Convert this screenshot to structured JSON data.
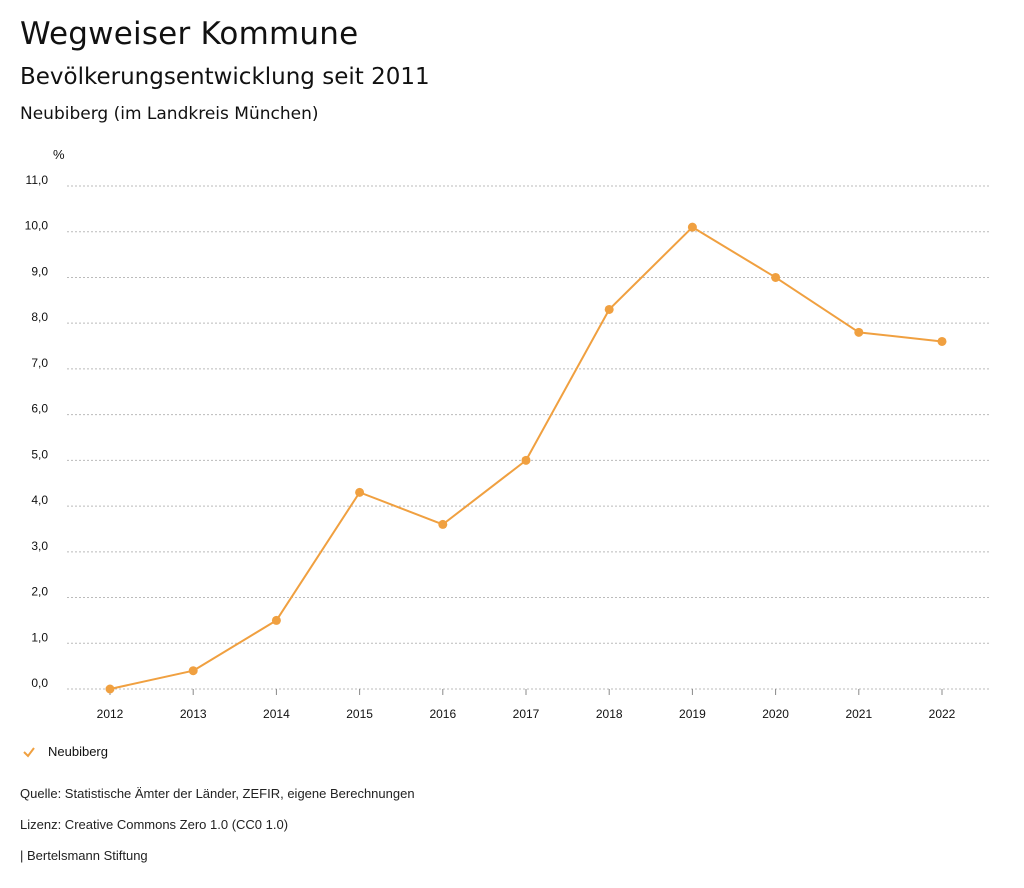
{
  "header": {
    "title": "Wegweiser Kommune",
    "subtitle": "Bevölkerungsentwicklung seit 2011",
    "region": "Neubiberg (im Landkreis München)"
  },
  "footer": {
    "source": "Quelle: Statistische Ämter der Länder, ZEFIR, eigene Berechnungen",
    "license": "Lizenz: Creative Commons Zero 1.0 (CC0 1.0)",
    "publisher": "| Bertelsmann Stiftung"
  },
  "colors": {
    "series": "#f0a040",
    "grid": "#bbbbbb"
  },
  "chart_data": {
    "type": "line",
    "title": "Bevölkerungsentwicklung seit 2011",
    "ylabel": "%",
    "xlabel": "",
    "categories": [
      "2012",
      "2013",
      "2014",
      "2015",
      "2016",
      "2017",
      "2018",
      "2019",
      "2020",
      "2021",
      "2022"
    ],
    "series": [
      {
        "name": "Neubiberg",
        "values": [
          0.0,
          0.4,
          1.5,
          4.3,
          3.6,
          5.0,
          8.3,
          10.1,
          9.0,
          7.8,
          7.6
        ]
      }
    ],
    "ylim": [
      0,
      11
    ],
    "yticks": [
      "0,0",
      "1,0",
      "2,0",
      "3,0",
      "4,0",
      "5,0",
      "6,0",
      "7,0",
      "8,0",
      "9,0",
      "10,0",
      "11,0"
    ],
    "grid": true,
    "legend_position": "bottom-left"
  }
}
